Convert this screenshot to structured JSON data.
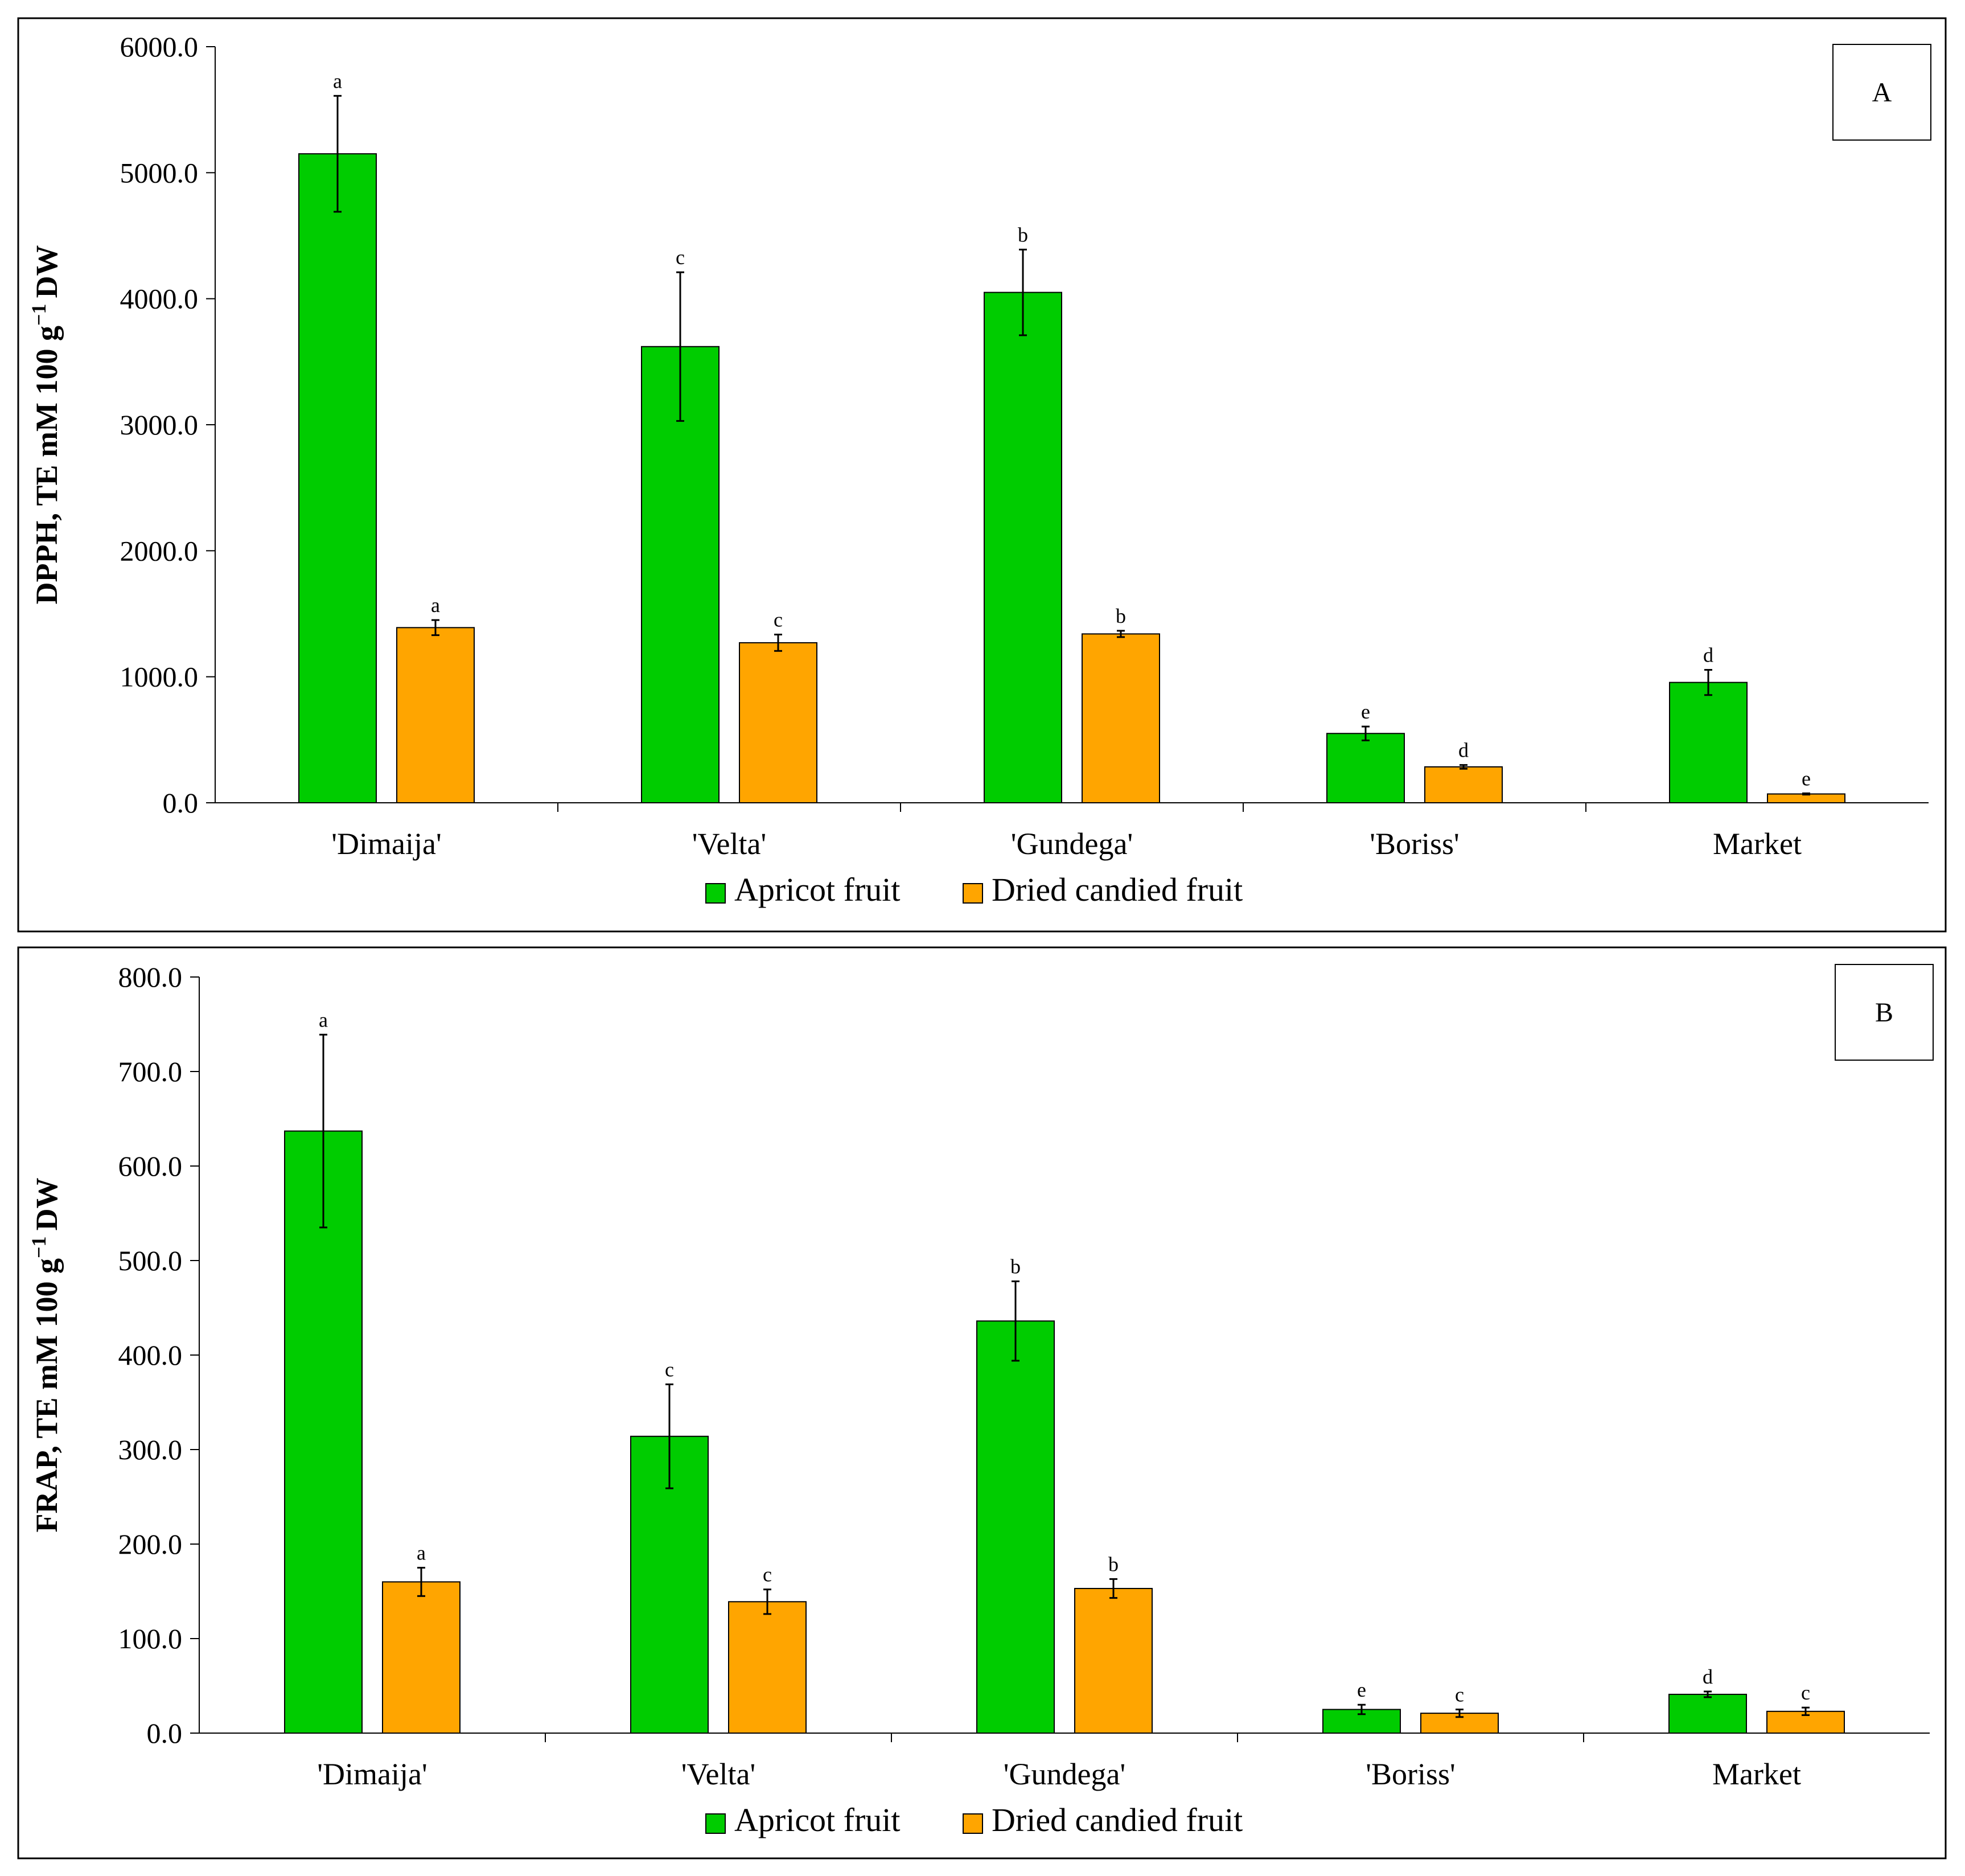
{
  "colors": {
    "apricot_fruit": "#00CC00",
    "dried_candied_fruit": "#FFA500",
    "axis": "#000000",
    "frame": "#000000"
  },
  "legend": {
    "apricot_fruit": "Apricot fruit",
    "dried_candied_fruit": "Dried candied fruit"
  },
  "chart_data": [
    {
      "type": "bar",
      "panel_label": "A",
      "ylabel": "DPPH, TE mM 100 g",
      "ylabel_superscript": "−1",
      "ylabel_suffix": "DW",
      "categories": [
        "'Dimaija'",
        "'Velta'",
        "'Gundega'",
        "'Boriss'",
        "Market"
      ],
      "ylim": [
        0,
        6000
      ],
      "yticks": [
        0,
        1000,
        2000,
        3000,
        4000,
        5000,
        6000
      ],
      "ytick_labels": [
        "0.0",
        "1000.0",
        "2000.0",
        "3000.0",
        "4000.0",
        "5000.0",
        "6000.0"
      ],
      "series": [
        {
          "name": "Apricot fruit",
          "values": [
            5150,
            3620,
            4050,
            550,
            955
          ],
          "errors": [
            460,
            590,
            340,
            55,
            100
          ],
          "letters": [
            "a",
            "c",
            "b",
            "e",
            "d"
          ]
        },
        {
          "name": "Dried candied fruit",
          "values": [
            1390,
            1270,
            1340,
            285,
            70
          ],
          "errors": [
            60,
            65,
            25,
            15,
            5
          ],
          "letters": [
            "a",
            "c",
            "b",
            "d",
            "e"
          ]
        }
      ]
    },
    {
      "type": "bar",
      "panel_label": "B",
      "ylabel": "FRAP, TE mM 100 g",
      "ylabel_superscript": "−1",
      "ylabel_suffix": "DW",
      "categories": [
        "'Dimaija'",
        "'Velta'",
        "'Gundega'",
        "'Boriss'",
        "Market"
      ],
      "ylim": [
        0,
        800
      ],
      "yticks": [
        0,
        100,
        200,
        300,
        400,
        500,
        600,
        700,
        800
      ],
      "ytick_labels": [
        "0.0",
        "100.0",
        "200.0",
        "300.0",
        "400.0",
        "500.0",
        "600.0",
        "700.0",
        "800.0"
      ],
      "series": [
        {
          "name": "Apricot fruit",
          "values": [
            637,
            314,
            436,
            25,
            41
          ],
          "errors": [
            102,
            55,
            42,
            5,
            3
          ],
          "letters": [
            "a",
            "c",
            "b",
            "e",
            "d"
          ]
        },
        {
          "name": "Dried candied fruit",
          "values": [
            160,
            139,
            153,
            21,
            23
          ],
          "errors": [
            15,
            13,
            10,
            4,
            4
          ],
          "letters": [
            "a",
            "c",
            "b",
            "c",
            "c"
          ]
        }
      ]
    }
  ]
}
